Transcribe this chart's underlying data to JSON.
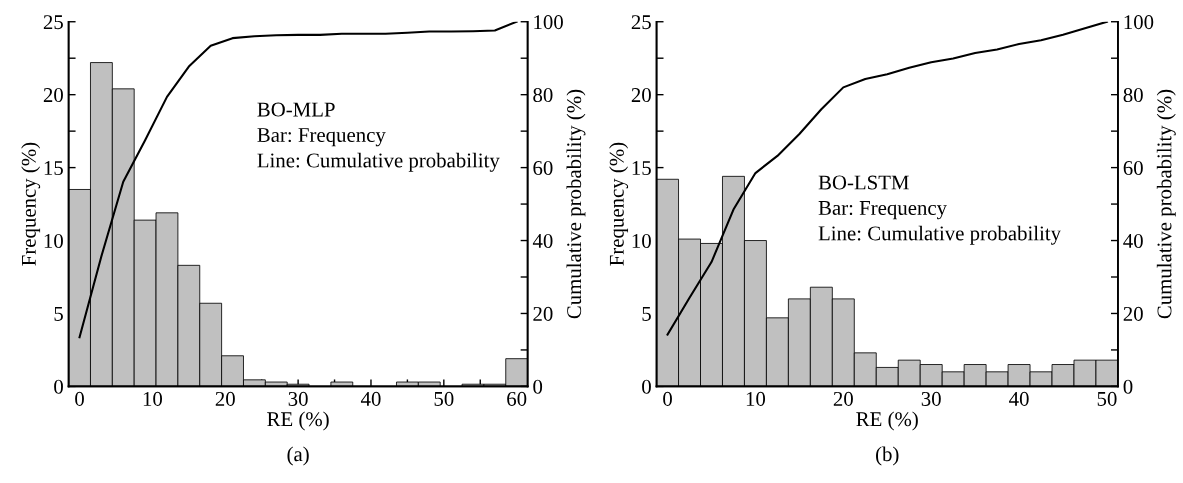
{
  "chart_data": [
    {
      "type": "histogram",
      "xlabel": "RE (%)",
      "ylabel": "Frequency (%)",
      "y2label": "Cumulative probability (%)",
      "annotations": [
        "BO-MLP\nBar: Frequency\nLine: Cumulative probability",
        "(a)"
      ],
      "xlim": [
        -1.5,
        61.5
      ],
      "ylim": [
        0,
        25
      ],
      "y2lim": [
        0,
        100
      ],
      "xticks": [
        0,
        {
          "value": 5,
          "label": null
        },
        10,
        {
          "value": 15,
          "label": null
        },
        20,
        {
          "value": 25,
          "label": null
        },
        30,
        {
          "value": 35,
          "label": null
        },
        40,
        {
          "value": 45,
          "label": null
        },
        50,
        {
          "value": 55,
          "label": null
        },
        60
      ],
      "yticks": [
        0,
        {
          "value": 2.5,
          "label": null
        },
        5,
        {
          "value": 7.5,
          "label": null
        },
        10,
        {
          "value": 12.5,
          "label": null
        },
        15,
        {
          "value": 17.5,
          "label": null
        },
        20,
        {
          "value": 22.5,
          "label": null
        },
        25
      ],
      "y2ticks": [
        0,
        {
          "value": 10,
          "label": null
        },
        20,
        {
          "value": 30,
          "label": null
        },
        40,
        {
          "value": 50,
          "label": null
        },
        60,
        {
          "value": 70,
          "label": null
        },
        80,
        {
          "value": 90,
          "label": null
        },
        100
      ],
      "series": [
        {
          "color": "#c0c0c0",
          "bins": [
            -1.5,
            1.5,
            4.5,
            7.5,
            10.5,
            13.5,
            16.5,
            19.5,
            22.5,
            25.5,
            28.5,
            31.5,
            34.5,
            37.5,
            40.5,
            43.5,
            46.5,
            49.5,
            52.5,
            55.5,
            58.5,
            61.5
          ],
          "values": [
            13.5,
            22.2,
            20.4,
            11.4,
            11.9,
            8.3,
            5.7,
            2.1,
            0.45,
            0.3,
            0.15,
            0,
            0.3,
            0,
            0,
            0.3,
            0.3,
            0,
            0.15,
            0.15,
            1.9
          ]
        },
        {
          "type": "line",
          "axis": "y2",
          "color": "#000000",
          "x": [
            0,
            3,
            6,
            9,
            12,
            15,
            18,
            21,
            24,
            27,
            30,
            33,
            36,
            39,
            42,
            45,
            48,
            51,
            54,
            57,
            60
          ],
          "values": [
            13.5,
            35.7,
            56.1,
            67.5,
            79.4,
            87.7,
            93.4,
            95.5,
            96,
            96.3,
            96.4,
            96.4,
            96.7,
            96.7,
            96.7,
            97,
            97.3,
            97.3,
            97.4,
            97.6,
            100
          ]
        }
      ]
    },
    {
      "type": "histogram",
      "xlabel": "RE (%)",
      "ylabel": "Frequency (%)",
      "y2label": "Cumulative probability (%)",
      "annotations": [
        "BO-LSTM\nBar: Frequency\nLine: Cumulative probability",
        "(b)"
      ],
      "xlim": [
        -1.25,
        51.25
      ],
      "ylim": [
        0,
        25
      ],
      "y2lim": [
        0,
        100
      ],
      "xticks": [
        0,
        {
          "value": 5,
          "label": null
        },
        10,
        {
          "value": 15,
          "label": null
        },
        20,
        {
          "value": 25,
          "label": null
        },
        30,
        {
          "value": 35,
          "label": null
        },
        40,
        {
          "value": 45,
          "label": null
        },
        50
      ],
      "yticks": [
        0,
        {
          "value": 2.5,
          "label": null
        },
        5,
        {
          "value": 7.5,
          "label": null
        },
        10,
        {
          "value": 12.5,
          "label": null
        },
        15,
        {
          "value": 17.5,
          "label": null
        },
        20,
        {
          "value": 22.5,
          "label": null
        },
        25
      ],
      "y2ticks": [
        0,
        {
          "value": 10,
          "label": null
        },
        20,
        {
          "value": 30,
          "label": null
        },
        40,
        {
          "value": 50,
          "label": null
        },
        60,
        {
          "value": 70,
          "label": null
        },
        80,
        {
          "value": 90,
          "label": null
        },
        100
      ],
      "series": [
        {
          "color": "#c0c0c0",
          "bins": [
            -1.25,
            1.25,
            3.75,
            6.25,
            8.75,
            11.25,
            13.75,
            16.25,
            18.75,
            21.25,
            23.75,
            26.25,
            28.75,
            31.25,
            33.75,
            36.25,
            38.75,
            41.25,
            43.75,
            46.25,
            48.75,
            51.25
          ],
          "values": [
            14.2,
            10.1,
            9.8,
            14.4,
            10,
            4.7,
            6.0,
            6.8,
            6.0,
            2.3,
            1.3,
            1.8,
            1.5,
            1.0,
            1.5,
            1.0,
            1.5,
            1.0,
            1.5,
            1.8,
            1.8
          ]
        },
        {
          "type": "line",
          "axis": "y2",
          "color": "#000000",
          "x": [
            0,
            2.5,
            5,
            7.5,
            10,
            12.5,
            15,
            17.5,
            20,
            22.5,
            25,
            27.5,
            30,
            32.5,
            35,
            37.5,
            40,
            42.5,
            45,
            47.5,
            50
          ],
          "values": [
            14.2,
            24.3,
            34.1,
            48.5,
            58.5,
            63.2,
            69.2,
            76,
            82,
            84.3,
            85.6,
            87.4,
            88.9,
            89.9,
            91.4,
            92.4,
            93.9,
            94.9,
            96.4,
            98.2,
            100
          ]
        }
      ]
    }
  ]
}
